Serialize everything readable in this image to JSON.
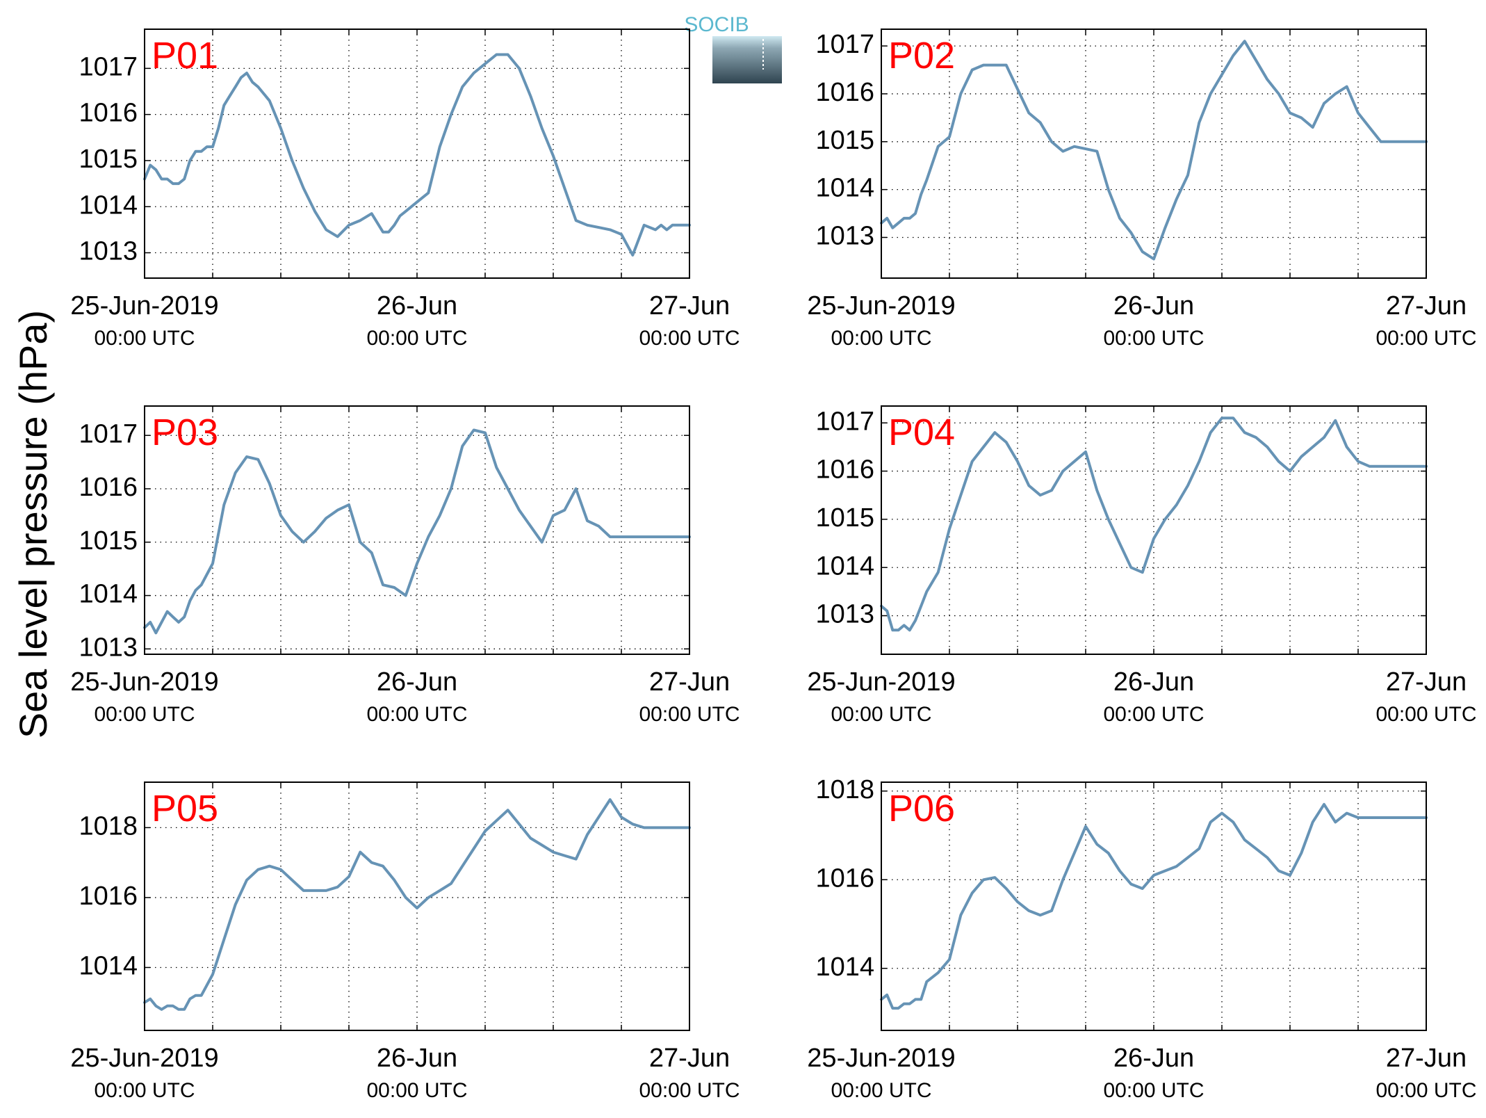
{
  "figure": {
    "ylabel": "Sea level pressure (hPa)",
    "logo_text": "SOCIB",
    "line_color": "#6693b5",
    "label_color": "#ff0000"
  },
  "chart_data": [
    {
      "type": "line",
      "panel": "P01",
      "x_range": [
        0,
        48
      ],
      "ylim": [
        1012.45,
        1017.85
      ],
      "yticks": [
        1013,
        1014,
        1015,
        1016,
        1017
      ],
      "xticks": [
        {
          "label": "25-Jun-2019",
          "sub": "00:00 UTC"
        },
        {
          "label": "26-Jun",
          "sub": "00:00 UTC"
        },
        {
          "label": "27-Jun",
          "sub": "00:00 UTC"
        }
      ],
      "grid": true,
      "x": [
        0,
        0.5,
        1,
        1.5,
        2,
        2.5,
        3,
        3.5,
        4,
        4.5,
        5,
        5.5,
        6,
        6.5,
        7,
        7.5,
        8,
        8.5,
        9,
        9.5,
        10,
        11,
        12,
        13,
        14,
        15,
        16,
        17,
        18,
        19,
        20,
        21,
        21.5,
        22,
        22.5,
        23,
        24,
        25,
        26,
        27,
        28,
        29,
        30,
        31,
        32,
        33,
        34,
        35,
        36,
        37,
        38,
        39,
        40,
        41,
        42,
        43,
        44,
        45,
        45.5,
        46,
        46.5,
        47,
        47.5,
        48
      ],
      "y": [
        1014.6,
        1014.9,
        1014.8,
        1014.6,
        1014.6,
        1014.5,
        1014.5,
        1014.6,
        1015.0,
        1015.2,
        1015.2,
        1015.3,
        1015.3,
        1015.7,
        1016.2,
        1016.4,
        1016.6,
        1016.8,
        1016.9,
        1016.7,
        1016.6,
        1016.3,
        1015.7,
        1015.0,
        1014.4,
        1013.9,
        1013.5,
        1013.35,
        1013.6,
        1013.7,
        1013.85,
        1013.45,
        1013.45,
        1013.6,
        1013.8,
        1013.9,
        1014.1,
        1014.3,
        1015.3,
        1016.0,
        1016.6,
        1016.9,
        1017.1,
        1017.3,
        1017.3,
        1017.0,
        1016.4,
        1015.7,
        1015.1,
        1014.4,
        1013.7,
        1013.6,
        1013.55,
        1013.5,
        1013.4,
        1012.95,
        1013.6,
        1013.5,
        1013.6,
        1013.5,
        1013.6,
        1013.6,
        1013.6,
        1013.6
      ]
    },
    {
      "type": "line",
      "panel": "P02",
      "x_range": [
        0,
        48
      ],
      "ylim": [
        1012.15,
        1017.35
      ],
      "yticks": [
        1013,
        1014,
        1015,
        1016,
        1017
      ],
      "xticks": [
        {
          "label": "25-Jun-2019",
          "sub": "00:00 UTC"
        },
        {
          "label": "26-Jun",
          "sub": "00:00 UTC"
        },
        {
          "label": "27-Jun",
          "sub": "00:00 UTC"
        }
      ],
      "grid": true,
      "x": [
        0,
        0.5,
        1,
        1.5,
        2,
        2.5,
        3,
        3.5,
        4,
        5,
        6,
        7,
        8,
        9,
        10,
        11,
        12,
        13,
        14,
        15,
        16,
        17,
        18,
        19,
        20,
        21,
        22,
        23,
        24,
        25,
        26,
        27,
        28,
        29,
        30,
        31,
        32,
        33,
        34,
        35,
        36,
        37,
        38,
        39,
        40,
        41,
        42,
        43,
        44,
        45,
        46,
        47,
        48
      ],
      "y": [
        1013.3,
        1013.4,
        1013.2,
        1013.3,
        1013.4,
        1013.4,
        1013.5,
        1013.9,
        1014.2,
        1014.9,
        1015.1,
        1016.0,
        1016.5,
        1016.6,
        1016.6,
        1016.6,
        1016.1,
        1015.6,
        1015.4,
        1015.0,
        1014.8,
        1014.9,
        1014.85,
        1014.8,
        1014.0,
        1013.4,
        1013.1,
        1012.7,
        1012.55,
        1013.2,
        1013.8,
        1014.3,
        1015.4,
        1016.0,
        1016.4,
        1016.8,
        1017.1,
        1016.7,
        1016.3,
        1016.0,
        1015.6,
        1015.5,
        1015.3,
        1015.8,
        1016.0,
        1016.15,
        1015.6,
        1015.3,
        1015.0,
        1015.0,
        1015.0,
        1015.0,
        1015.0
      ]
    },
    {
      "type": "line",
      "panel": "P03",
      "x_range": [
        0,
        48
      ],
      "ylim": [
        1012.9,
        1017.55
      ],
      "yticks": [
        1013,
        1014,
        1015,
        1016,
        1017
      ],
      "xticks": [
        {
          "label": "25-Jun-2019",
          "sub": "00:00 UTC"
        },
        {
          "label": "26-Jun",
          "sub": "00:00 UTC"
        },
        {
          "label": "27-Jun",
          "sub": "00:00 UTC"
        }
      ],
      "grid": true,
      "x": [
        0,
        0.5,
        1,
        1.5,
        2,
        2.5,
        3,
        3.5,
        4,
        4.5,
        5,
        6,
        7,
        8,
        9,
        10,
        11,
        12,
        13,
        14,
        15,
        16,
        17,
        18,
        19,
        20,
        21,
        22,
        23,
        24,
        25,
        26,
        27,
        28,
        29,
        30,
        31,
        32,
        33,
        34,
        35,
        36,
        37,
        38,
        39,
        40,
        41,
        42,
        43,
        44,
        45,
        45.5,
        46,
        47,
        48
      ],
      "y": [
        1013.4,
        1013.5,
        1013.3,
        1013.5,
        1013.7,
        1013.6,
        1013.5,
        1013.6,
        1013.9,
        1014.1,
        1014.2,
        1014.6,
        1015.7,
        1016.3,
        1016.6,
        1016.55,
        1016.1,
        1015.5,
        1015.2,
        1015.0,
        1015.2,
        1015.45,
        1015.6,
        1015.7,
        1015.0,
        1014.8,
        1014.2,
        1014.15,
        1014.0,
        1014.6,
        1015.1,
        1015.5,
        1016.0,
        1016.8,
        1017.1,
        1017.05,
        1016.4,
        1016.0,
        1015.6,
        1015.3,
        1015.0,
        1015.5,
        1015.6,
        1016.0,
        1015.4,
        1015.3,
        1015.1,
        1015.1,
        1015.1,
        1015.1,
        1015.1,
        1015.1,
        1015.1,
        1015.1,
        1015.1
      ]
    },
    {
      "type": "line",
      "panel": "P04",
      "x_range": [
        0,
        48
      ],
      "ylim": [
        1012.2,
        1017.35
      ],
      "yticks": [
        1013,
        1014,
        1015,
        1016,
        1017
      ],
      "xticks": [
        {
          "label": "25-Jun-2019",
          "sub": "00:00 UTC"
        },
        {
          "label": "26-Jun",
          "sub": "00:00 UTC"
        },
        {
          "label": "27-Jun",
          "sub": "00:00 UTC"
        }
      ],
      "grid": true,
      "x": [
        0,
        0.5,
        1,
        1.5,
        2,
        2.5,
        3,
        3.5,
        4,
        5,
        6,
        7,
        8,
        9,
        10,
        11,
        12,
        13,
        14,
        15,
        16,
        17,
        18,
        19,
        20,
        21,
        22,
        23,
        24,
        25,
        26,
        27,
        28,
        29,
        30,
        31,
        32,
        33,
        34,
        35,
        36,
        37,
        38,
        39,
        40,
        41,
        42,
        43,
        44,
        45,
        46,
        47,
        48
      ],
      "y": [
        1013.2,
        1013.1,
        1012.7,
        1012.7,
        1012.8,
        1012.7,
        1012.9,
        1013.2,
        1013.5,
        1013.9,
        1014.8,
        1015.5,
        1016.2,
        1016.5,
        1016.8,
        1016.6,
        1016.2,
        1015.7,
        1015.5,
        1015.6,
        1016.0,
        1016.2,
        1016.4,
        1015.6,
        1015.0,
        1014.5,
        1014.0,
        1013.9,
        1014.6,
        1015.0,
        1015.3,
        1015.7,
        1016.2,
        1016.8,
        1017.1,
        1017.1,
        1016.8,
        1016.7,
        1016.5,
        1016.2,
        1016.0,
        1016.3,
        1016.5,
        1016.7,
        1017.05,
        1016.5,
        1016.2,
        1016.1,
        1016.1,
        1016.1,
        1016.1,
        1016.1,
        1016.1
      ]
    },
    {
      "type": "line",
      "panel": "P05",
      "x_range": [
        0,
        48
      ],
      "ylim": [
        1012.2,
        1019.3
      ],
      "yticks": [
        1014,
        1016,
        1018
      ],
      "xticks": [
        {
          "label": "25-Jun-2019",
          "sub": "00:00 UTC"
        },
        {
          "label": "26-Jun",
          "sub": "00:00 UTC"
        },
        {
          "label": "27-Jun",
          "sub": "00:00 UTC"
        }
      ],
      "grid": true,
      "x": [
        0,
        0.5,
        1,
        1.5,
        2,
        2.5,
        3,
        3.5,
        4,
        4.5,
        5,
        6,
        7,
        8,
        9,
        10,
        11,
        12,
        13,
        14,
        15,
        16,
        17,
        18,
        19,
        20,
        21,
        22,
        23,
        24,
        25,
        26,
        27,
        28,
        29,
        30,
        31,
        32,
        33,
        34,
        35,
        36,
        37,
        38,
        39,
        40,
        41,
        42,
        43,
        44,
        45,
        46,
        47,
        48
      ],
      "y": [
        1013.0,
        1013.1,
        1012.9,
        1012.8,
        1012.9,
        1012.9,
        1012.8,
        1012.8,
        1013.1,
        1013.2,
        1013.2,
        1013.8,
        1014.8,
        1015.8,
        1016.5,
        1016.8,
        1016.9,
        1016.8,
        1016.5,
        1016.2,
        1016.2,
        1016.2,
        1016.3,
        1016.6,
        1017.3,
        1017.0,
        1016.9,
        1016.5,
        1016.0,
        1015.7,
        1016.0,
        1016.2,
        1016.4,
        1016.9,
        1017.4,
        1017.9,
        1018.2,
        1018.5,
        1018.1,
        1017.7,
        1017.5,
        1017.3,
        1017.2,
        1017.1,
        1017.8,
        1018.3,
        1018.8,
        1018.3,
        1018.1,
        1018.0,
        1018.0,
        1018.0,
        1018.0,
        1018.0
      ]
    },
    {
      "type": "line",
      "panel": "P06",
      "x_range": [
        0,
        48
      ],
      "ylim": [
        1012.6,
        1018.2
      ],
      "yticks": [
        1014,
        1016,
        1018
      ],
      "xticks": [
        {
          "label": "25-Jun-2019",
          "sub": "00:00 UTC"
        },
        {
          "label": "26-Jun",
          "sub": "00:00 UTC"
        },
        {
          "label": "27-Jun",
          "sub": "00:00 UTC"
        }
      ],
      "grid": true,
      "x": [
        0,
        0.5,
        1,
        1.5,
        2,
        2.5,
        3,
        3.5,
        4,
        5,
        6,
        7,
        8,
        9,
        10,
        11,
        12,
        13,
        14,
        15,
        16,
        17,
        18,
        19,
        20,
        21,
        22,
        23,
        24,
        25,
        26,
        27,
        28,
        29,
        30,
        31,
        32,
        33,
        34,
        35,
        36,
        37,
        38,
        39,
        40,
        41,
        42,
        43,
        44,
        45,
        46,
        47,
        48
      ],
      "y": [
        1013.3,
        1013.4,
        1013.1,
        1013.1,
        1013.2,
        1013.2,
        1013.3,
        1013.3,
        1013.7,
        1013.9,
        1014.2,
        1015.2,
        1015.7,
        1016.0,
        1016.05,
        1015.8,
        1015.5,
        1015.3,
        1015.2,
        1015.3,
        1016.0,
        1016.6,
        1017.2,
        1016.8,
        1016.6,
        1016.2,
        1015.9,
        1015.8,
        1016.1,
        1016.2,
        1016.3,
        1016.5,
        1016.7,
        1017.3,
        1017.5,
        1017.3,
        1016.9,
        1016.7,
        1016.5,
        1016.2,
        1016.1,
        1016.6,
        1017.3,
        1017.7,
        1017.3,
        1017.5,
        1017.4,
        1017.4,
        1017.4,
        1017.4,
        1017.4,
        1017.4,
        1017.4
      ]
    }
  ]
}
